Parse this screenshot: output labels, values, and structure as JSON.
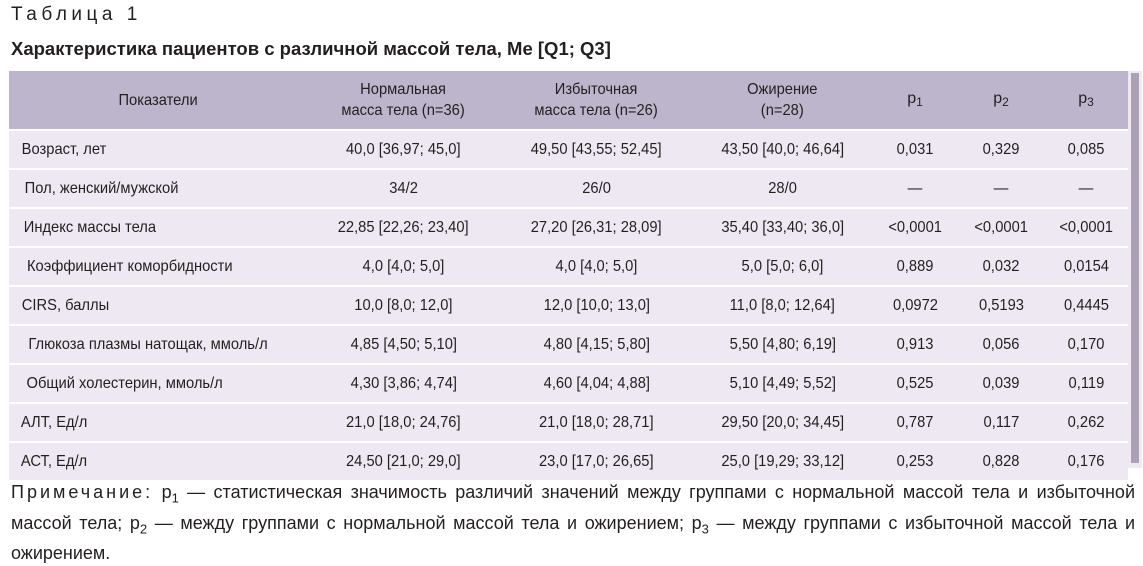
{
  "table_label": "Таблица 1",
  "title": "Характеристика пациентов с различной массой тела, Me [Q1; Q3]",
  "headers": {
    "indicator": "Показатели",
    "normal_line1": "Нормальная",
    "normal_line2": "масса тела (n=36)",
    "over_line1": "Избыточная",
    "over_line2": "масса тела (n=26)",
    "obese_line1": "Ожирение",
    "obese_line2": "(n=28)",
    "p": "p",
    "p1_sub": "1",
    "p2_sub": "2",
    "p3_sub": "3"
  },
  "rows": [
    {
      "label": "Возраст, лет",
      "normal": "40,0 [36,97; 45,0]",
      "over": "49,50 [43,55; 52,45]",
      "obese": "43,50 [40,0; 46,64]",
      "p1": "0,031",
      "p2": "0,329",
      "p3": "0,085"
    },
    {
      "label": "Пол, женский/мужской",
      "normal": "34/2",
      "over": "26/0",
      "obese": "28/0",
      "p1": "—",
      "p2": "—",
      "p3": "—"
    },
    {
      "label": "Индекс массы тела",
      "normal": "22,85 [22,26; 23,40]",
      "over": "27,20 [26,31; 28,09]",
      "obese": "35,40 [33,40; 36,0]",
      "p1": "<0,0001",
      "p2": "<0,0001",
      "p3": "<0,0001"
    },
    {
      "label": "Коэффициент коморбидности",
      "normal": "4,0 [4,0; 5,0]",
      "over": "4,0 [4,0; 5,0]",
      "obese": "5,0 [5,0; 6,0]",
      "p1": "0,889",
      "p2": "0,032",
      "p3": "0,0154"
    },
    {
      "label": "CIRS, баллы",
      "normal": "10,0 [8,0; 12,0]",
      "over": "12,0 [10,0; 13,0]",
      "obese": "11,0 [8,0; 12,64]",
      "p1": "0,0972",
      "p2": "0,5193",
      "p3": "0,4445"
    },
    {
      "label": "Глюкоза плазмы натощак, ммоль/л",
      "normal": "4,85 [4,50; 5,10]",
      "over": "4,80 [4,15; 5,80]",
      "obese": "5,50 [4,80; 6,19]",
      "p1": "0,913",
      "p2": "0,056",
      "p3": "0,170"
    },
    {
      "label": "Общий холестерин, ммоль/л",
      "normal": "4,30 [3,86; 4,74]",
      "over": "4,60 [4,04; 4,88]",
      "obese": "5,10 [4,49; 5,52]",
      "p1": "0,525",
      "p2": "0,039",
      "p3": "0,119"
    },
    {
      "label": "АЛТ, Ед/л",
      "normal": "21,0 [18,0; 24,76]",
      "over": "21,0 [18,0; 28,71]",
      "obese": "29,50 [20,0; 34,45]",
      "p1": "0,787",
      "p2": "0,117",
      "p3": "0,262"
    },
    {
      "label": "АСТ, Ед/л",
      "normal": "24,50 [21,0; 29,0]",
      "over": "23,0 [17,0; 26,65]",
      "obese": "25,0 [19,29; 33,12]",
      "p1": "0,253",
      "p2": "0,828",
      "p3": "0,176"
    }
  ],
  "note": {
    "heading": "Примечание:",
    "p": "p",
    "s1": "1",
    "t1": " — статистическая значимость различий значений между группами с нормальной массой тела и избыточной массой тела; ",
    "s2": "2",
    "t2": " — между группами с нормальной массой тела и ожирением; ",
    "s3": "3",
    "t3": " — между группами с избыточной массой тела и ожирением."
  },
  "colors": {
    "header_bg": "#bdb5cc",
    "row_bg": "#ede8f1",
    "text": "#231f20"
  }
}
